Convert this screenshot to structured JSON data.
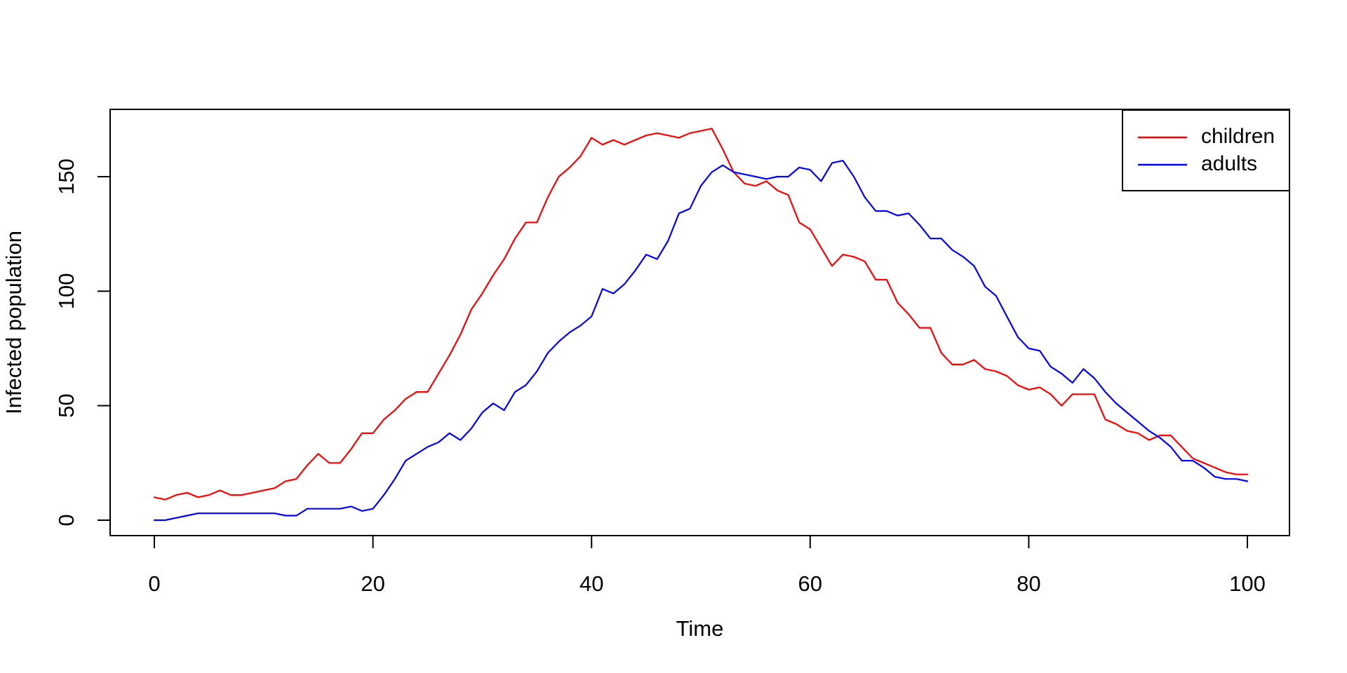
{
  "figure": {
    "background_color": "#ffffff",
    "border_color": "#000000",
    "text_color": "#000000"
  },
  "chart_data": {
    "type": "line",
    "title": "",
    "xlabel": "Time",
    "ylabel": "Infected population",
    "xlim": [
      0,
      100
    ],
    "ylim": [
      0,
      171
    ],
    "x_ticks": [
      0,
      20,
      40,
      60,
      80,
      100
    ],
    "y_ticks": [
      0,
      50,
      100,
      150
    ],
    "grid": "off",
    "legend_position": "topright",
    "x_start": 0,
    "x_step": 1,
    "series": [
      {
        "name": "children",
        "color": "#ff0000",
        "values": [
          10,
          9,
          11,
          12,
          10,
          11,
          13,
          11,
          11,
          12,
          13,
          14,
          17,
          18,
          24,
          29,
          25,
          25,
          31,
          38,
          38,
          44,
          48,
          53,
          56,
          56,
          64,
          72,
          81,
          92,
          99,
          107,
          114,
          123,
          130,
          130,
          141,
          150,
          154,
          159,
          167,
          164,
          166,
          164,
          166,
          168,
          169,
          168,
          167,
          169,
          170,
          171,
          162,
          152,
          147,
          146,
          148,
          144,
          142,
          130,
          127,
          119,
          111,
          116,
          115,
          113,
          105,
          105,
          95,
          90,
          84,
          84,
          73,
          68,
          68,
          70,
          66,
          65,
          63,
          59,
          57,
          58,
          55,
          50,
          55,
          55,
          55,
          44,
          42,
          39,
          38,
          35,
          37,
          37,
          32,
          27,
          25,
          23,
          21,
          20,
          20
        ]
      },
      {
        "name": "adults",
        "color": "#0000ff",
        "values": [
          0,
          0,
          1,
          2,
          3,
          3,
          3,
          3,
          3,
          3,
          3,
          3,
          2,
          2,
          5,
          5,
          5,
          5,
          6,
          4,
          5,
          11,
          18,
          26,
          29,
          32,
          34,
          38,
          35,
          40,
          47,
          51,
          48,
          56,
          59,
          65,
          73,
          78,
          82,
          85,
          89,
          101,
          99,
          103,
          109,
          116,
          114,
          122,
          134,
          136,
          146,
          152,
          155,
          152,
          151,
          150,
          149,
          150,
          150,
          154,
          153,
          148,
          156,
          157,
          150,
          141,
          135,
          135,
          133,
          134,
          129,
          123,
          123,
          118,
          115,
          111,
          102,
          98,
          89,
          80,
          75,
          74,
          67,
          64,
          60,
          66,
          62,
          56,
          51,
          47,
          43,
          39,
          36,
          32,
          26,
          26,
          23,
          19,
          18,
          18,
          17
        ]
      }
    ],
    "legend": {
      "items": [
        {
          "label": "children",
          "color": "#ff0000"
        },
        {
          "label": "adults",
          "color": "#0000ff"
        }
      ]
    }
  }
}
